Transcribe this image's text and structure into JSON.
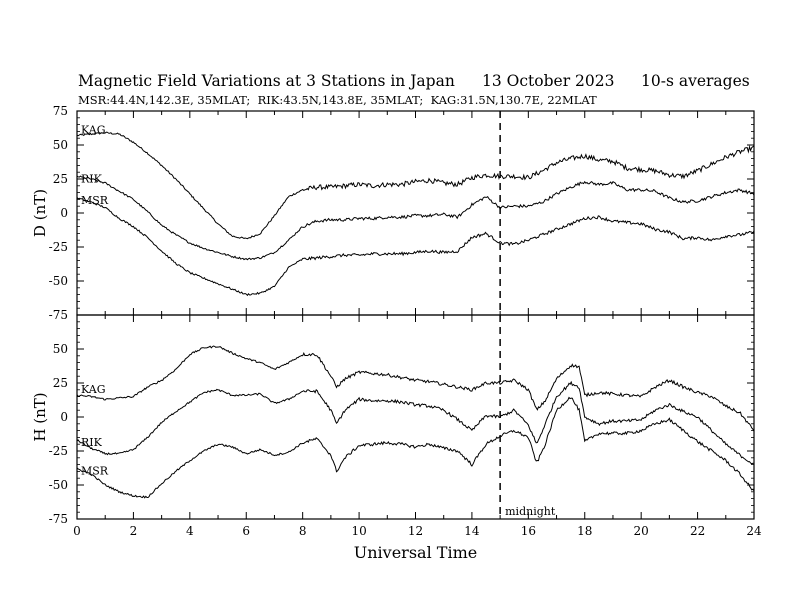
{
  "header": {
    "title": "Magnetic Field Variations at 3 Stations in Japan",
    "date": "13 October 2023",
    "averaging": "10-s averages",
    "stations_line": "MSR:44.4N,142.3E, 35MLAT;  RIK:43.5N,143.8E, 35MLAT;  KAG:31.5N,130.7E, 22MLAT"
  },
  "chart_data": [
    {
      "type": "line",
      "panel": "top",
      "ylabel": "D (nT)",
      "ylim": [
        -75,
        75
      ],
      "yticks": [
        75,
        50,
        25,
        0,
        -25,
        -50,
        -75
      ],
      "xlim": [
        0,
        24
      ],
      "series": [
        {
          "name": "KAG",
          "x": [
            0,
            0.5,
            1,
            1.5,
            2,
            2.5,
            3,
            3.5,
            4,
            4.5,
            5,
            5.5,
            6,
            6.5,
            7,
            7.5,
            8,
            8.5,
            9,
            9.5,
            10,
            10.5,
            11,
            11.5,
            12,
            12.5,
            13,
            13.5,
            14,
            14.5,
            15,
            15.5,
            16,
            16.5,
            17,
            17.5,
            18,
            18.5,
            19,
            19.5,
            20,
            20.5,
            21,
            21.5,
            22,
            22.5,
            23,
            23.5,
            24
          ],
          "y": [
            57,
            58,
            59,
            58,
            52,
            44,
            35,
            25,
            14,
            3,
            -8,
            -17,
            -19,
            -15,
            -2,
            12,
            17,
            19,
            19,
            20,
            21,
            20,
            21,
            21,
            23,
            24,
            22,
            21,
            26,
            28,
            27,
            27,
            26,
            31,
            37,
            40,
            42,
            39,
            38,
            33,
            32,
            31,
            28,
            27,
            31,
            36,
            41,
            45,
            48
          ]
        },
        {
          "name": "RIK",
          "x": [
            0,
            0.5,
            1,
            1.5,
            2,
            2.5,
            3,
            3.5,
            4,
            4.5,
            5,
            5.5,
            6,
            6.5,
            7,
            7.5,
            8,
            8.5,
            9,
            9.5,
            10,
            10.5,
            11,
            11.5,
            12,
            12.5,
            13,
            13.5,
            14,
            14.5,
            15,
            15.5,
            16,
            16.5,
            17,
            17.5,
            18,
            18.5,
            19,
            19.5,
            20,
            20.5,
            21,
            21.5,
            22,
            22.5,
            23,
            23.5,
            24
          ],
          "y": [
            27,
            25,
            22,
            16,
            10,
            1,
            -9,
            -16,
            -22,
            -26,
            -29,
            -32,
            -34,
            -33,
            -29,
            -20,
            -10,
            -6,
            -5,
            -5,
            -4,
            -4,
            -3,
            -3,
            -2,
            -2,
            -1,
            -3,
            6,
            12,
            4,
            5,
            5,
            8,
            14,
            19,
            23,
            21,
            22,
            17,
            17,
            16,
            11,
            8,
            9,
            12,
            15,
            17,
            14
          ]
        },
        {
          "name": "MSR",
          "x": [
            0,
            0.5,
            1,
            1.5,
            2,
            2.5,
            3,
            3.5,
            4,
            4.5,
            5,
            5.5,
            6,
            6.5,
            7,
            7.5,
            8,
            8.5,
            9,
            9.5,
            10,
            10.5,
            11,
            11.5,
            12,
            12.5,
            13,
            13.5,
            14,
            14.5,
            15,
            15.5,
            16,
            16.5,
            17,
            17.5,
            18,
            18.5,
            19,
            19.5,
            20,
            20.5,
            21,
            21.5,
            22,
            22.5,
            23,
            23.5,
            24
          ],
          "y": [
            11,
            8,
            4,
            -4,
            -10,
            -18,
            -28,
            -37,
            -44,
            -48,
            -52,
            -56,
            -60,
            -59,
            -54,
            -40,
            -34,
            -33,
            -32,
            -31,
            -31,
            -30,
            -30,
            -30,
            -29,
            -28,
            -29,
            -28,
            -18,
            -15,
            -22,
            -23,
            -20,
            -16,
            -12,
            -8,
            -4,
            -3,
            -6,
            -7,
            -8,
            -12,
            -14,
            -19,
            -18,
            -20,
            -17,
            -16,
            -14
          ]
        }
      ],
      "annotations": [
        {
          "x": 15,
          "style": "dashed"
        }
      ]
    },
    {
      "type": "line",
      "panel": "bottom",
      "ylabel": "H (nT)",
      "xlabel": "Universal Time",
      "ylim": [
        -75,
        75
      ],
      "yticks": [
        50,
        25,
        0,
        -25,
        -50,
        -75
      ],
      "xlim": [
        0,
        24
      ],
      "xticks": [
        0,
        2,
        4,
        6,
        8,
        10,
        12,
        14,
        16,
        18,
        20,
        22,
        24
      ],
      "series": [
        {
          "name": "KAG",
          "x": [
            0,
            0.5,
            1,
            1.5,
            2,
            2.5,
            3,
            3.5,
            4,
            4.5,
            5,
            5.5,
            6,
            6.5,
            7,
            7.5,
            8,
            8.5,
            9,
            9.2,
            9.5,
            10,
            10.5,
            11,
            11.5,
            12,
            12.5,
            13,
            13.5,
            14,
            14.5,
            15,
            15.5,
            16,
            16.3,
            16.6,
            17,
            17.5,
            17.8,
            18,
            18.5,
            19,
            19.5,
            20,
            20.5,
            21,
            21.5,
            22,
            22.5,
            23,
            23.5,
            24
          ],
          "y": [
            16,
            15,
            13,
            14,
            15,
            22,
            27,
            35,
            46,
            51,
            52,
            47,
            43,
            40,
            35,
            40,
            46,
            46,
            30,
            22,
            28,
            33,
            32,
            31,
            29,
            27,
            26,
            24,
            22,
            20,
            25,
            25,
            27,
            20,
            5,
            12,
            28,
            38,
            37,
            16,
            18,
            17,
            16,
            15,
            22,
            27,
            22,
            18,
            15,
            8,
            3,
            -10
          ]
        },
        {
          "name": "RIK",
          "x": [
            0,
            0.5,
            1,
            1.5,
            2,
            2.5,
            3,
            3.5,
            4,
            4.5,
            5,
            5.5,
            6,
            6.5,
            7,
            7.5,
            8,
            8.5,
            9,
            9.2,
            9.5,
            10,
            10.5,
            11,
            11.5,
            12,
            12.5,
            13,
            13.5,
            14,
            14.5,
            15,
            15.5,
            16,
            16.3,
            16.6,
            17,
            17.5,
            17.8,
            18,
            18.5,
            19,
            19.5,
            20,
            20.5,
            21,
            21.5,
            22,
            22.5,
            23,
            23.5,
            24
          ],
          "y": [
            -17,
            -23,
            -27,
            -27,
            -24,
            -15,
            -4,
            4,
            11,
            18,
            20,
            16,
            16,
            17,
            10,
            13,
            19,
            19,
            5,
            -5,
            5,
            13,
            12,
            12,
            11,
            9,
            8,
            5,
            -2,
            -10,
            1,
            0,
            5,
            -6,
            -20,
            -5,
            15,
            25,
            22,
            0,
            -5,
            -3,
            -3,
            -2,
            5,
            9,
            4,
            0,
            -10,
            -20,
            -28,
            -35
          ]
        },
        {
          "name": "MSR",
          "x": [
            0,
            0.5,
            1,
            1.5,
            2,
            2.5,
            3,
            3.5,
            4,
            4.5,
            5,
            5.5,
            6,
            6.5,
            7,
            7.5,
            8,
            8.5,
            9,
            9.2,
            9.5,
            10,
            10.5,
            11,
            11.5,
            12,
            12.5,
            13,
            13.5,
            14,
            14.5,
            15,
            15.5,
            16,
            16.3,
            16.6,
            17,
            17.5,
            17.8,
            18,
            18.5,
            19,
            19.5,
            20,
            20.5,
            21,
            21.5,
            22,
            22.5,
            23,
            23.5,
            24
          ],
          "y": [
            -38,
            -42,
            -50,
            -55,
            -58,
            -59,
            -49,
            -40,
            -32,
            -25,
            -20,
            -22,
            -27,
            -24,
            -28,
            -26,
            -19,
            -16,
            -28,
            -40,
            -30,
            -21,
            -20,
            -19,
            -20,
            -22,
            -20,
            -23,
            -25,
            -35,
            -20,
            -14,
            -10,
            -15,
            -34,
            -20,
            5,
            15,
            5,
            -18,
            -12,
            -12,
            -12,
            -10,
            -5,
            -2,
            -10,
            -18,
            -25,
            -32,
            -42,
            -55
          ]
        }
      ],
      "annotations": [
        {
          "x": 15,
          "style": "dashed",
          "text": "midnight"
        }
      ]
    }
  ]
}
